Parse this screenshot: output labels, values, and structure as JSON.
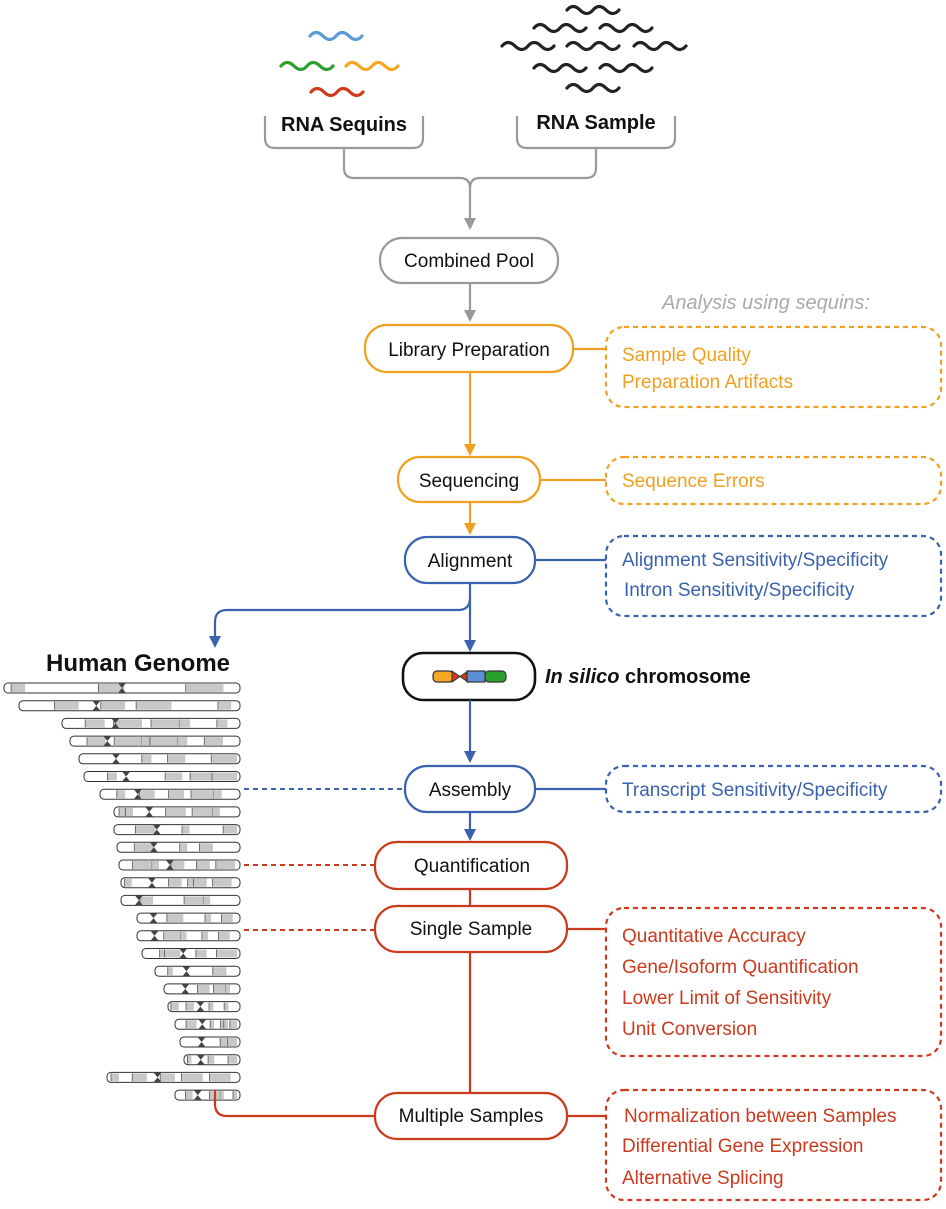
{
  "inputs": {
    "sequins_label": "RNA Sequins",
    "sample_label": "RNA Sample"
  },
  "analysis_header": "Analysis using sequins:",
  "steps": {
    "pool": "Combined Pool",
    "library": "Library Preparation",
    "sequencing": "Sequencing",
    "alignment": "Alignment",
    "assembly": "Assembly",
    "quantification": "Quantification",
    "single": "Single Sample",
    "multiple": "Multiple Samples"
  },
  "genome": {
    "title": "Human Genome",
    "insilico_italic": "In silico",
    "insilico_rest": " chromosome"
  },
  "analyses": {
    "library": [
      "Sample Quality",
      "Preparation Artifacts"
    ],
    "sequencing": [
      "Sequence Errors"
    ],
    "alignment": [
      "Alignment Sensitivity/Specificity",
      "Intron Sensitivity/Specificity"
    ],
    "assembly": [
      "Transcript Sensitivity/Specificity"
    ],
    "single": [
      "Quantitative Accuracy",
      "Gene/Isoform Quantification",
      "Lower Limit of Sensitivity",
      "Unit Conversion"
    ],
    "multiple": [
      "Normalization between Samples",
      "Differential Gene Expression",
      "Alternative Splicing"
    ]
  },
  "colors": {
    "gray": "#999999",
    "orange": "#f0a020",
    "blue": "#3a62ae",
    "red": "#cc3a1e",
    "black": "#111111",
    "chrom_band": "#c8c8c8",
    "seq_blue": "#5b9bd5",
    "seq_green": "#2ca02c",
    "seq_orange": "#f5a623",
    "seq_red": "#d03a1a",
    "insilico_orange": "#f5a623",
    "insilico_red": "#d03a1a",
    "insilico_blue": "#5b8fd6",
    "insilico_green": "#2ca02c"
  }
}
